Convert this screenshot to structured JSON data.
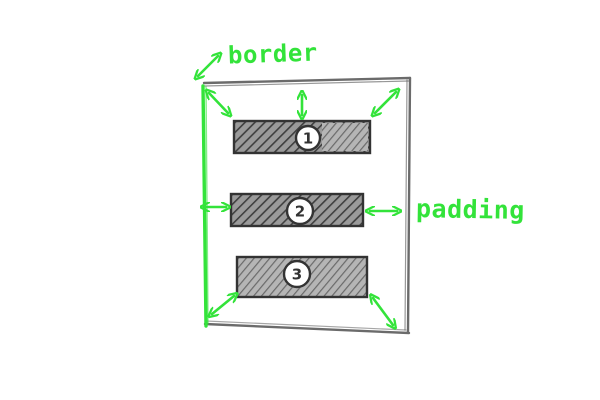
{
  "labels": {
    "border": "border",
    "padding": "padding"
  },
  "items": [
    {
      "number": "1"
    },
    {
      "number": "2"
    },
    {
      "number": "3"
    }
  ],
  "colors": {
    "annotation": "#33e33a",
    "box_outline": "#666666",
    "item_fill": "#8a8a8a",
    "item_hatch": "#444444"
  }
}
